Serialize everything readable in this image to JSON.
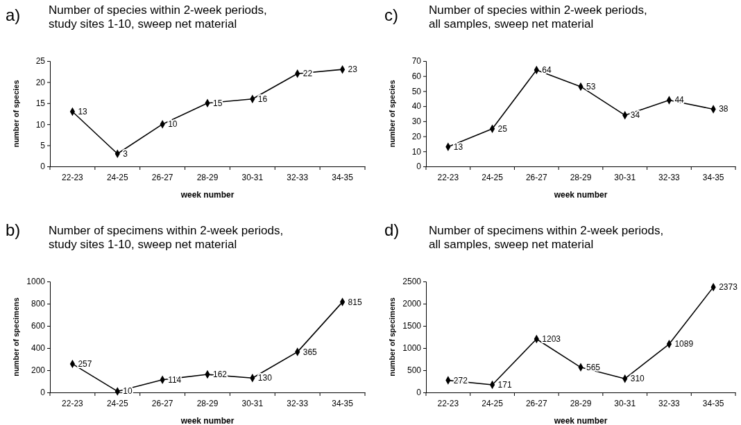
{
  "chart_data": [
    {
      "type": "line",
      "title": "Number of species within 2-week periods, study sites 1-10, sweep net material",
      "annotations": [
        "a)"
      ],
      "xlabel": "week number",
      "ylabel": "number of species",
      "categories": [
        "22-23",
        "24-25",
        "26-27",
        "28-29",
        "30-31",
        "32-33",
        "34-35"
      ],
      "values": [
        13,
        3,
        10,
        15,
        16,
        22,
        23
      ],
      "color": "#000000",
      "ylim": [
        0,
        25
      ],
      "yticks": [
        0,
        5,
        10,
        15,
        20,
        25
      ],
      "marker": "diamond",
      "data_labels": true,
      "grid": false
    },
    {
      "type": "line",
      "title": "Number of specimens within 2-week periods, study sites 1-10, sweep net material",
      "annotations": [
        "b)"
      ],
      "xlabel": "week number",
      "ylabel": "number of specimens",
      "categories": [
        "22-23",
        "24-25",
        "26-27",
        "28-29",
        "30-31",
        "32-33",
        "34-35"
      ],
      "values": [
        257,
        10,
        114,
        162,
        130,
        365,
        815
      ],
      "color": "#000000",
      "ylim": [
        0,
        1000
      ],
      "yticks": [
        0,
        200,
        400,
        600,
        800,
        1000
      ],
      "marker": "diamond",
      "data_labels": true,
      "grid": false
    },
    {
      "type": "line",
      "title": "Number of species within 2-week periods, all samples, sweep net material",
      "annotations": [
        "c)"
      ],
      "xlabel": "week number",
      "ylabel": "number of species",
      "categories": [
        "22-23",
        "24-25",
        "26-27",
        "28-29",
        "30-31",
        "32-33",
        "34-35"
      ],
      "values": [
        13,
        25,
        64,
        53,
        34,
        44,
        38
      ],
      "color": "#000000",
      "ylim": [
        0,
        70
      ],
      "yticks": [
        0,
        10,
        20,
        30,
        40,
        50,
        60,
        70
      ],
      "marker": "diamond",
      "data_labels": true,
      "grid": false
    },
    {
      "type": "line",
      "title": "Number of specimens within 2-week periods, all samples, sweep net material",
      "annotations": [
        "d)"
      ],
      "xlabel": "week number",
      "ylabel": "number of specimens",
      "categories": [
        "22-23",
        "24-25",
        "26-27",
        "28-29",
        "30-31",
        "32-33",
        "34-35"
      ],
      "values": [
        272,
        171,
        1203,
        565,
        310,
        1089,
        2373
      ],
      "color": "#000000",
      "ylim": [
        0,
        2500
      ],
      "yticks": [
        0,
        500,
        1000,
        1500,
        2000,
        2500
      ],
      "marker": "diamond",
      "data_labels": true,
      "grid": false
    }
  ]
}
